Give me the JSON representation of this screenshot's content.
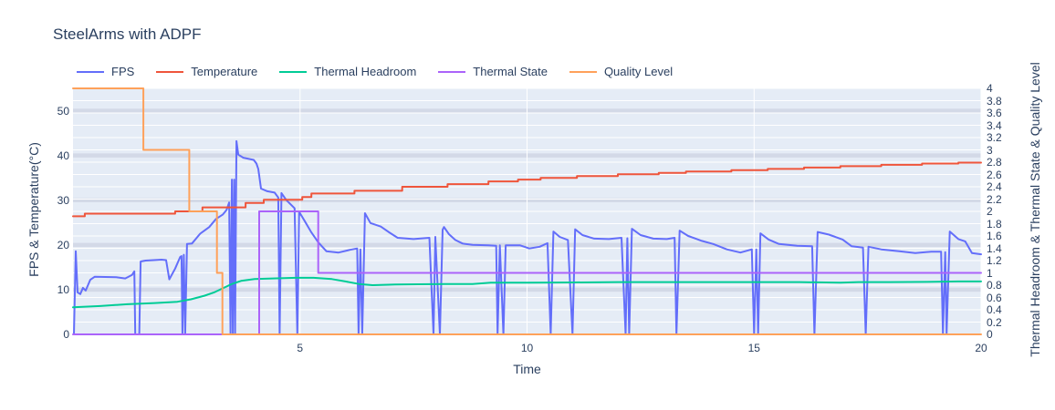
{
  "header": {
    "title": "SteelArms with ADPF"
  },
  "axes": {
    "x_title": "Time",
    "y_left_title": "FPS & Temperature(°C)",
    "y_right_title": "Thermal Headroom & Thermal State & Quality Level"
  },
  "colors": {
    "plot_bg": "#e5ecf6",
    "grid": "#ffffff",
    "band": "#ccd3e2",
    "text": "#2a3f5f"
  },
  "chart_data": {
    "type": "line",
    "title": "SteelArms with ADPF",
    "xlabel": "Time",
    "ylabel_left": "FPS & Temperature(°C)",
    "ylabel_right": "Thermal Headroom & Thermal State & Quality Level",
    "x_range": [
      0,
      20
    ],
    "y_left_range": [
      0,
      55
    ],
    "y_right_range": [
      0,
      4
    ],
    "x_ticks": [
      5,
      10,
      15,
      20
    ],
    "y_left_ticks": [
      0,
      10,
      20,
      30,
      40,
      50
    ],
    "y_right_ticks": [
      0,
      0.2,
      0.4,
      0.6,
      0.8,
      1,
      1.2,
      1.4,
      1.6,
      1.8,
      2,
      2.2,
      2.4,
      2.6,
      2.8,
      3,
      3.2,
      3.4,
      3.6,
      3.8,
      4
    ],
    "grid": true,
    "legend_position": "top",
    "series": [
      {
        "name": "FPS",
        "color": "#636EFA",
        "axis": "left",
        "shape": "linear",
        "points": [
          [
            0.02,
            0
          ],
          [
            0.06,
            18.6
          ],
          [
            0.1,
            9.4
          ],
          [
            0.16,
            9.0
          ],
          [
            0.22,
            10.4
          ],
          [
            0.28,
            9.8
          ],
          [
            0.38,
            12.2
          ],
          [
            0.48,
            12.9
          ],
          [
            0.95,
            12.8
          ],
          [
            1.15,
            12.5
          ],
          [
            1.3,
            13.3
          ],
          [
            1.35,
            14.1
          ],
          [
            1.37,
            0
          ],
          [
            1.46,
            0
          ],
          [
            1.49,
            16.3
          ],
          [
            1.6,
            16.5
          ],
          [
            1.95,
            16.7
          ],
          [
            2.05,
            16.6
          ],
          [
            2.12,
            12.3
          ],
          [
            2.25,
            14.7
          ],
          [
            2.36,
            17.3
          ],
          [
            2.39,
            17.5
          ],
          [
            2.41,
            0
          ],
          [
            2.44,
            17.8
          ],
          [
            2.47,
            0
          ],
          [
            2.51,
            20.2
          ],
          [
            2.62,
            20.3
          ],
          [
            2.8,
            22.5
          ],
          [
            3.0,
            24.0
          ],
          [
            3.15,
            25.8
          ],
          [
            3.3,
            26.8
          ],
          [
            3.38,
            27.8
          ],
          [
            3.44,
            29.5
          ],
          [
            3.47,
            0
          ],
          [
            3.5,
            34.6
          ],
          [
            3.52,
            0
          ],
          [
            3.55,
            34.6
          ],
          [
            3.57,
            0
          ],
          [
            3.6,
            43.2
          ],
          [
            3.64,
            40.2
          ],
          [
            3.75,
            39.5
          ],
          [
            3.98,
            39.0
          ],
          [
            4.04,
            38.2
          ],
          [
            4.08,
            37.0
          ],
          [
            4.14,
            32.6
          ],
          [
            4.28,
            32.0
          ],
          [
            4.44,
            31.7
          ],
          [
            4.52,
            30.6
          ],
          [
            4.55,
            0
          ],
          [
            4.59,
            31.6
          ],
          [
            4.7,
            30.0
          ],
          [
            4.88,
            28.2
          ],
          [
            4.94,
            0
          ],
          [
            4.98,
            27.4
          ],
          [
            5.1,
            25.4
          ],
          [
            5.25,
            22.8
          ],
          [
            5.4,
            20.6
          ],
          [
            5.58,
            18.6
          ],
          [
            5.85,
            18.3
          ],
          [
            6.1,
            18.9
          ],
          [
            6.26,
            19.2
          ],
          [
            6.29,
            0
          ],
          [
            6.33,
            19.0
          ],
          [
            6.37,
            0
          ],
          [
            6.43,
            27.1
          ],
          [
            6.55,
            24.9
          ],
          [
            6.78,
            24.1
          ],
          [
            6.95,
            22.9
          ],
          [
            7.15,
            21.6
          ],
          [
            7.5,
            21.3
          ],
          [
            7.85,
            21.6
          ],
          [
            7.94,
            0
          ],
          [
            7.98,
            21.8
          ],
          [
            8.08,
            0
          ],
          [
            8.14,
            23.4
          ],
          [
            8.17,
            24.0
          ],
          [
            8.28,
            22.4
          ],
          [
            8.42,
            21.1
          ],
          [
            8.58,
            20.3
          ],
          [
            8.8,
            20.0
          ],
          [
            9.15,
            19.9
          ],
          [
            9.32,
            19.8
          ],
          [
            9.35,
            0
          ],
          [
            9.4,
            19.9
          ],
          [
            9.48,
            0
          ],
          [
            9.53,
            19.9
          ],
          [
            9.85,
            19.9
          ],
          [
            10.05,
            19.2
          ],
          [
            10.28,
            19.6
          ],
          [
            10.45,
            20.4
          ],
          [
            10.52,
            0
          ],
          [
            10.58,
            23.0
          ],
          [
            10.72,
            21.8
          ],
          [
            10.9,
            21.1
          ],
          [
            11.0,
            0
          ],
          [
            11.06,
            23.5
          ],
          [
            11.22,
            22.2
          ],
          [
            11.48,
            21.4
          ],
          [
            11.8,
            21.3
          ],
          [
            12.08,
            21.6
          ],
          [
            12.17,
            0
          ],
          [
            12.21,
            21.5
          ],
          [
            12.25,
            0
          ],
          [
            12.31,
            23.6
          ],
          [
            12.5,
            22.2
          ],
          [
            12.78,
            21.4
          ],
          [
            13.08,
            21.3
          ],
          [
            13.25,
            21.6
          ],
          [
            13.29,
            0
          ],
          [
            13.36,
            23.2
          ],
          [
            13.55,
            22.0
          ],
          [
            13.85,
            20.9
          ],
          [
            14.1,
            20.2
          ],
          [
            14.4,
            19.0
          ],
          [
            14.7,
            18.3
          ],
          [
            14.95,
            19.0
          ],
          [
            15.0,
            0
          ],
          [
            15.05,
            19.0
          ],
          [
            15.09,
            0
          ],
          [
            15.14,
            22.6
          ],
          [
            15.32,
            21.2
          ],
          [
            15.55,
            20.2
          ],
          [
            15.95,
            19.8
          ],
          [
            16.28,
            19.7
          ],
          [
            16.33,
            0
          ],
          [
            16.4,
            22.9
          ],
          [
            16.65,
            22.3
          ],
          [
            16.95,
            21.2
          ],
          [
            17.15,
            19.7
          ],
          [
            17.4,
            19.4
          ],
          [
            17.46,
            0
          ],
          [
            17.52,
            19.6
          ],
          [
            17.8,
            19.0
          ],
          [
            18.2,
            18.6
          ],
          [
            18.55,
            18.2
          ],
          [
            18.9,
            18.5
          ],
          [
            19.12,
            18.5
          ],
          [
            19.16,
            0
          ],
          [
            19.21,
            18.4
          ],
          [
            19.24,
            0
          ],
          [
            19.31,
            23.0
          ],
          [
            19.5,
            21.3
          ],
          [
            19.65,
            20.8
          ],
          [
            19.8,
            18.2
          ],
          [
            20.0,
            17.9
          ]
        ]
      },
      {
        "name": "Temperature",
        "color": "#EF553B",
        "axis": "left",
        "shape": "hv",
        "points": [
          [
            0,
            26.4
          ],
          [
            0.26,
            27.0
          ],
          [
            2.25,
            27.5
          ],
          [
            2.85,
            28.4
          ],
          [
            3.8,
            29.4
          ],
          [
            4.2,
            30.1
          ],
          [
            5.05,
            30.7
          ],
          [
            5.25,
            31.5
          ],
          [
            6.2,
            32.1
          ],
          [
            7.25,
            33.0
          ],
          [
            8.25,
            33.6
          ],
          [
            9.15,
            34.2
          ],
          [
            9.8,
            34.6
          ],
          [
            10.3,
            35.0
          ],
          [
            11.1,
            35.4
          ],
          [
            12.0,
            35.8
          ],
          [
            12.9,
            36.1
          ],
          [
            13.5,
            36.4
          ],
          [
            14.5,
            36.7
          ],
          [
            15.3,
            37.0
          ],
          [
            16.1,
            37.3
          ],
          [
            16.9,
            37.6
          ],
          [
            17.8,
            37.9
          ],
          [
            18.7,
            38.2
          ],
          [
            19.5,
            38.4
          ],
          [
            20.0,
            38.4
          ]
        ]
      },
      {
        "name": "Thermal Headroom",
        "color": "#00CC96",
        "axis": "right",
        "shape": "linear",
        "points": [
          [
            0,
            0.44
          ],
          [
            0.6,
            0.46
          ],
          [
            1.2,
            0.49
          ],
          [
            1.8,
            0.51
          ],
          [
            2.3,
            0.53
          ],
          [
            2.6,
            0.57
          ],
          [
            2.9,
            0.63
          ],
          [
            3.1,
            0.68
          ],
          [
            3.3,
            0.75
          ],
          [
            3.5,
            0.82
          ],
          [
            3.7,
            0.87
          ],
          [
            4.0,
            0.9
          ],
          [
            4.4,
            0.91
          ],
          [
            4.9,
            0.92
          ],
          [
            5.3,
            0.92
          ],
          [
            5.7,
            0.9
          ],
          [
            6.0,
            0.86
          ],
          [
            6.3,
            0.82
          ],
          [
            6.6,
            0.8
          ],
          [
            7.1,
            0.81
          ],
          [
            7.6,
            0.815
          ],
          [
            8.2,
            0.82
          ],
          [
            8.8,
            0.82
          ],
          [
            9.2,
            0.84
          ],
          [
            10.0,
            0.84
          ],
          [
            11.0,
            0.845
          ],
          [
            12.0,
            0.85
          ],
          [
            13.0,
            0.85
          ],
          [
            14.0,
            0.85
          ],
          [
            15.0,
            0.85
          ],
          [
            16.0,
            0.85
          ],
          [
            16.9,
            0.84
          ],
          [
            17.3,
            0.85
          ],
          [
            18.0,
            0.85
          ],
          [
            19.0,
            0.855
          ],
          [
            19.5,
            0.86
          ],
          [
            20.0,
            0.86
          ]
        ]
      },
      {
        "name": "Thermal State",
        "color": "#AB63FA",
        "axis": "right",
        "shape": "hv",
        "points": [
          [
            0,
            0
          ],
          [
            4.1,
            2
          ],
          [
            5.4,
            1
          ],
          [
            20,
            1
          ]
        ]
      },
      {
        "name": "Quality Level",
        "color": "#FFA15A",
        "axis": "right",
        "shape": "hv",
        "points": [
          [
            0,
            4
          ],
          [
            1.55,
            3
          ],
          [
            2.56,
            2
          ],
          [
            3.17,
            1
          ],
          [
            3.29,
            0
          ],
          [
            20,
            0
          ]
        ]
      }
    ]
  },
  "legend": {
    "items": [
      {
        "label": "FPS"
      },
      {
        "label": "Temperature"
      },
      {
        "label": "Thermal Headroom"
      },
      {
        "label": "Thermal State"
      },
      {
        "label": "Quality Level"
      }
    ]
  }
}
